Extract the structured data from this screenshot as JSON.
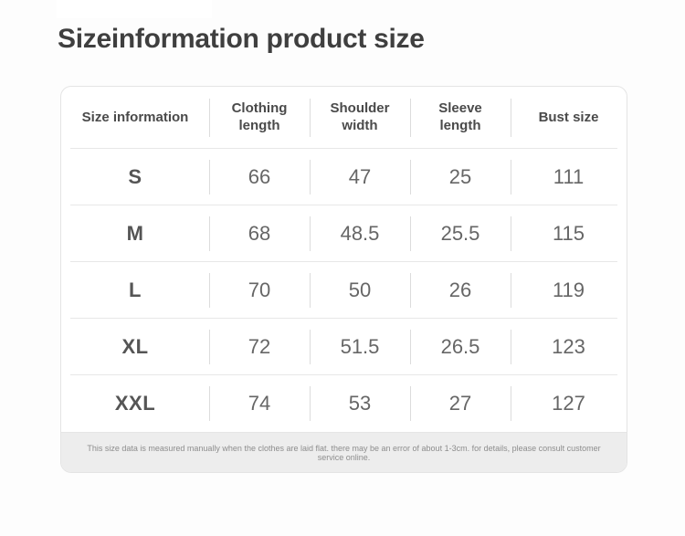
{
  "page": {
    "title": "Sizeinformation product size"
  },
  "chart_data": {
    "type": "table",
    "title": "Sizeinformation product size",
    "columns": [
      "Size information",
      "Clothing length",
      "Shoulder width",
      "Sleeve length",
      "Bust size"
    ],
    "rows": [
      [
        "S",
        "66",
        "47",
        "25",
        "111"
      ],
      [
        "M",
        "68",
        "48.5",
        "25.5",
        "115"
      ],
      [
        "L",
        "70",
        "50",
        "26",
        "119"
      ],
      [
        "XL",
        "72",
        "51.5",
        "26.5",
        "123"
      ],
      [
        "XXL",
        "74",
        "53",
        "27",
        "127"
      ]
    ],
    "footnote": "This size data is measured manually when the clothes are laid flat. there may be an error of about 1-3cm. for details, please consult customer service online."
  },
  "colors": {
    "page_bg": "#fdfdfd",
    "card_bg": "#ffffff",
    "card_border": "#e4e4e4",
    "title_text": "#3f3f3f",
    "header_text": "#4a4a4a",
    "size_label_text": "#555555",
    "cell_text": "#666666",
    "column_divider": "#dcdcdc",
    "row_line": "#e7e7e7",
    "footer_bg": "#ededed",
    "footer_text": "#8d8d8d"
  }
}
